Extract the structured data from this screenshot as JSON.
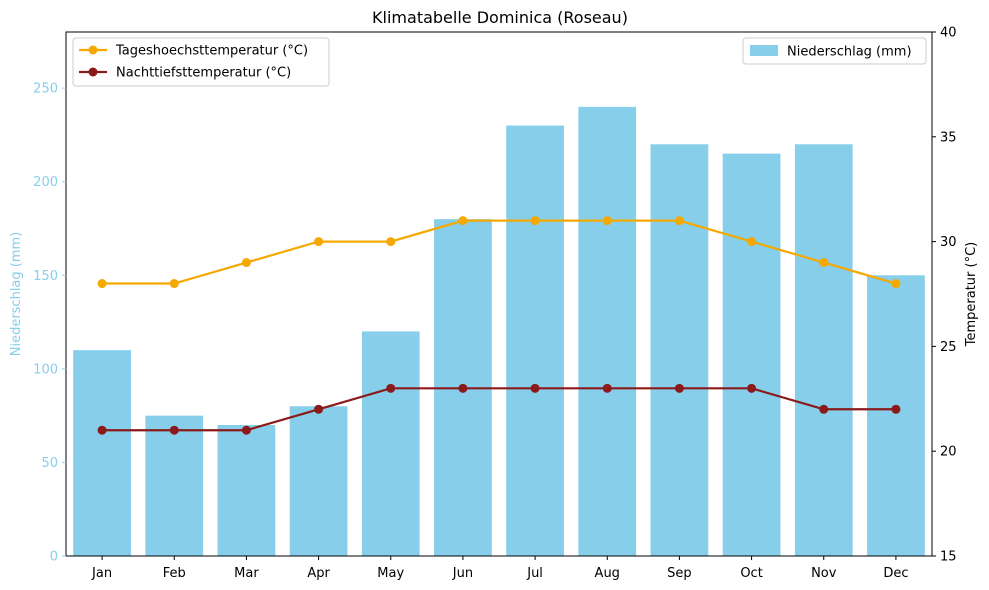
{
  "chart_data": {
    "type": "bar",
    "title": "Klimatabelle Dominica (Roseau)",
    "xlabel": "",
    "categories": [
      "Jan",
      "Feb",
      "Mar",
      "Apr",
      "May",
      "Jun",
      "Jul",
      "Aug",
      "Sep",
      "Oct",
      "Nov",
      "Dec"
    ],
    "bar_series": {
      "name": "Niederschlag (mm)",
      "color": "#87CEEB",
      "values": [
        110,
        75,
        70,
        80,
        120,
        180,
        230,
        240,
        220,
        215,
        220,
        150
      ]
    },
    "line_series": [
      {
        "name": "Tageshoechsttemperatur (°C)",
        "color": "#F5A800",
        "values": [
          28,
          28,
          29,
          30,
          30,
          31,
          31,
          31,
          31,
          30,
          29,
          28
        ]
      },
      {
        "name": "Nachttiefsttemperatur (°C)",
        "color": "#8B1A1A",
        "values": [
          21,
          21,
          21,
          22,
          23,
          23,
          23,
          23,
          23,
          23,
          22,
          22
        ]
      }
    ],
    "y_left": {
      "label": "Niederschlag (mm)",
      "color": "#87CEEB",
      "ylim": [
        0,
        280
      ],
      "ticks": [
        0,
        50,
        100,
        150,
        200,
        250
      ]
    },
    "y_right": {
      "label": "Temperatur (°C)",
      "ylim": [
        15,
        40
      ],
      "ticks": [
        15,
        20,
        25,
        30,
        35,
        40
      ]
    },
    "legend_lines_position": "top-left",
    "legend_bars_position": "top-right",
    "grid": false
  }
}
